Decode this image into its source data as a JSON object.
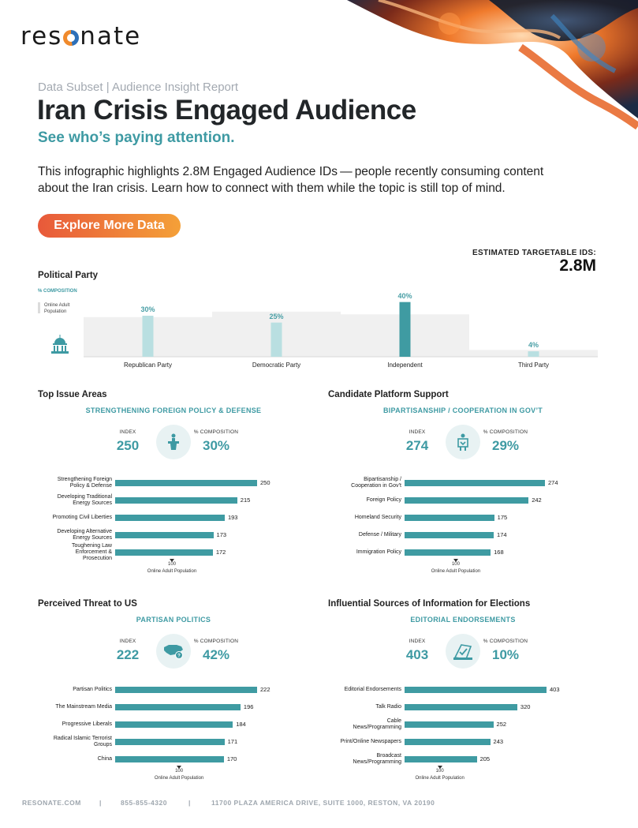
{
  "brand": {
    "logo": "resonate",
    "accent": "#3e9aa3",
    "cta_gradient": [
      "#e8593a",
      "#f4a038"
    ]
  },
  "header": {
    "kicker": "Data Subset | Audience Insight Report",
    "title": "Iran Crisis Engaged Audience",
    "subtitle": "See who’s paying attention.",
    "intro": "This infographic highlights 2.8M Engaged Audience IDs — people recently consuming content about the Iran crisis. Learn how to connect with them while the topic is still top of mind.",
    "cta_label": "Explore More Data"
  },
  "estimate": {
    "label": "ESTIMATED TARGETABLE IDS:",
    "value": "2.8M"
  },
  "political_party": {
    "title": "Political Party",
    "axis_label": "% COMPOSITION",
    "legend": "Online Adult\nPopulation",
    "icon": "capitol-icon",
    "chart_data": {
      "type": "bar",
      "categories": [
        "Republican Party",
        "Democratic Party",
        "Independent",
        "Third Party"
      ],
      "values": [
        30,
        25,
        40,
        4
      ],
      "value_labels": [
        "30%",
        "25%",
        "40%",
        "4%"
      ],
      "baseline": [
        29,
        33,
        31,
        5
      ],
      "ylim": [
        0,
        45
      ]
    }
  },
  "top_issues": {
    "title": "Top Issue Areas",
    "headline": "STRENGTHENING FOREIGN POLICY & DEFENSE",
    "index_label": "INDEX",
    "index_value": "250",
    "comp_label": "% COMPOSITION",
    "comp_value": "30%",
    "icon": "podium-icon",
    "ref_label": "100",
    "ref_caption": "Online Adult Population",
    "chart_data": {
      "type": "bar",
      "categories": [
        "Strengthening Foreign\nPolicy & Defense",
        "Developing Traditional\nEnergy Sources",
        "Promoting Civil Liberties",
        "Developing Alternative\nEnergy Sources",
        "Toughening Law\nEnforcement &\nProsecution"
      ],
      "values": [
        250,
        215,
        193,
        173,
        172
      ],
      "xlim": [
        0,
        250
      ]
    }
  },
  "candidate_platform": {
    "title": "Candidate Platform Support",
    "headline": "BIPARTISANSHIP / COOPERATION IN GOV’T",
    "index_label": "INDEX",
    "index_value": "274",
    "comp_label": "% COMPOSITION",
    "comp_value": "29%",
    "icon": "handshake-podium-icon",
    "ref_label": "100",
    "ref_caption": "Online Adult Population",
    "chart_data": {
      "type": "bar",
      "categories": [
        "Bipartisanship /\nCooperation in Gov’t",
        "Foreign Policy",
        "Homeland Security",
        "Defense / Military",
        "Immigration Policy"
      ],
      "values": [
        274,
        242,
        175,
        174,
        168
      ],
      "xlim": [
        0,
        274
      ]
    }
  },
  "perceived_threat": {
    "title": "Perceived Threat to US",
    "headline": "PARTISAN POLITICS",
    "index_label": "INDEX",
    "index_value": "222",
    "comp_label": "% COMPOSITION",
    "comp_value": "42%",
    "icon": "us-map-question-icon",
    "ref_label": "100",
    "ref_caption": "Online Adult Population",
    "chart_data": {
      "type": "bar",
      "categories": [
        "Partisan Politics",
        "The Mainstream Media",
        "Progressive Liberals",
        "Radical Islamic Terrorist\nGroups",
        "China"
      ],
      "values": [
        222,
        196,
        184,
        171,
        170
      ],
      "xlim": [
        0,
        222
      ]
    }
  },
  "influential_sources": {
    "title": "Influential Sources of Information for Elections",
    "headline": "EDITORIAL ENDORSEMENTS",
    "index_label": "INDEX",
    "index_value": "403",
    "comp_label": "% COMPOSITION",
    "comp_value": "10%",
    "icon": "newspaper-check-icon",
    "ref_label": "100",
    "ref_caption": "Online Adult Population",
    "chart_data": {
      "type": "bar",
      "categories": [
        "Editorial Endorsements",
        "Talk Radio",
        "Cable\nNews/Programming",
        "Print/Online Newspapers",
        "Broadcast\nNews/Programming"
      ],
      "values": [
        403,
        320,
        252,
        243,
        205
      ],
      "xlim": [
        0,
        403
      ]
    }
  },
  "footer": {
    "website": "RESONATE.COM",
    "phone": "855-855-4320",
    "address": "11700 PLAZA AMERICA DRIVE, SUITE 1000, RESTON, VA 20190",
    "separator": "|"
  }
}
